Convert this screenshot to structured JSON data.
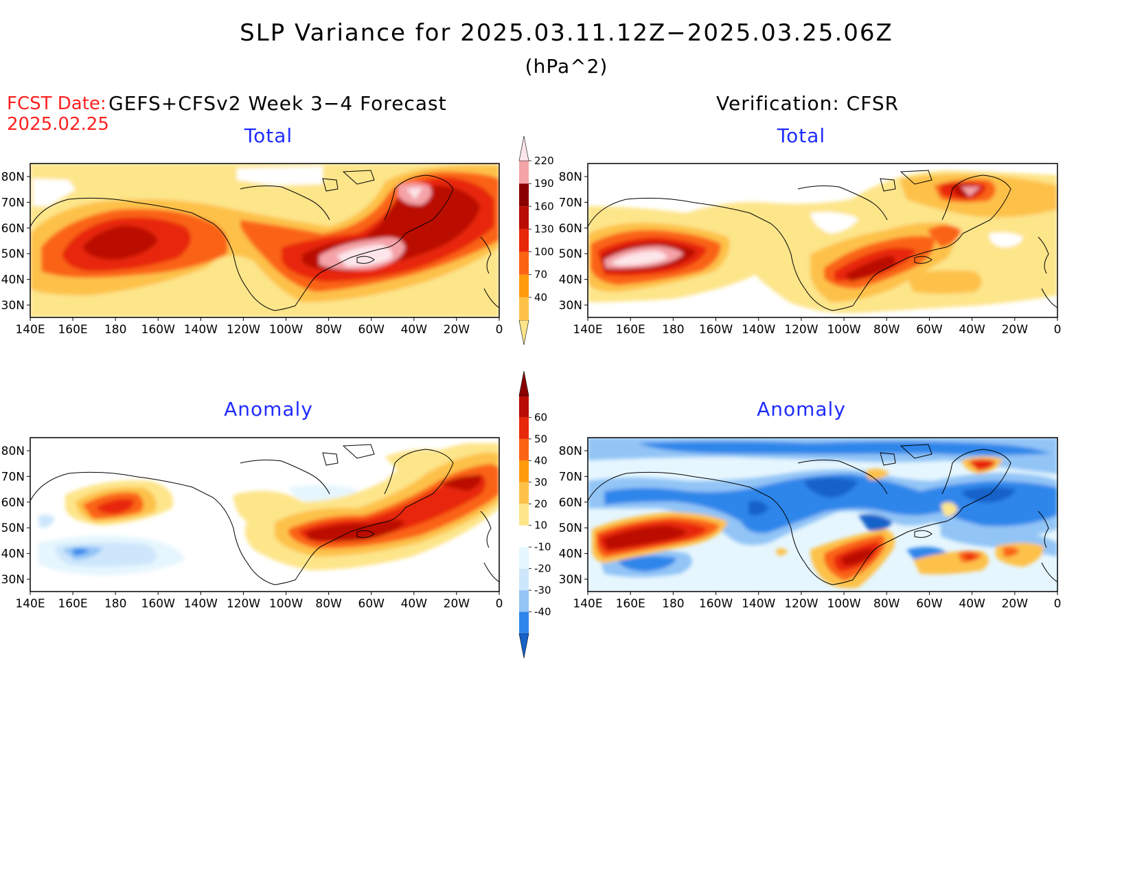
{
  "title": "SLP Variance for 2025.03.11.12Z−2025.03.25.06Z",
  "units": "(hPa^2)",
  "fcst_date_label": "FCST Date:",
  "fcst_date_value": "2025.02.25",
  "left_header": "GEFS+CFSv2 Week 3−4 Forecast",
  "right_header": "Verification: CFSR",
  "panels": [
    {
      "title": "Total"
    },
    {
      "title": "Total"
    },
    {
      "title": "Anomaly"
    },
    {
      "title": "Anomaly"
    }
  ],
  "lat_labels": [
    "80N",
    "70N",
    "60N",
    "50N",
    "40N",
    "30N"
  ],
  "lon_labels": [
    "140E",
    "160E",
    "180",
    "160W",
    "140W",
    "120W",
    "100W",
    "80W",
    "60W",
    "40W",
    "20W",
    "0"
  ],
  "colorbar_total": {
    "levels": [
      "40",
      "70",
      "100",
      "130",
      "160",
      "190",
      "220"
    ],
    "colors": [
      "#fde58a",
      "#fdc14a",
      "#fd9b0c",
      "#fa6414",
      "#e8280a",
      "#ba0d04",
      "#8a0000",
      "#f4a3a8",
      "#fde6ea"
    ]
  },
  "colorbar_anomaly": {
    "levels": [
      "-40",
      "-30",
      "-20",
      "-10",
      "10",
      "20",
      "30",
      "40",
      "50",
      "60"
    ],
    "colors": [
      "#1762c9",
      "#2f86ea",
      "#92c4f6",
      "#cde6fb",
      "#e6f6fe",
      "#ffffff",
      "#fde58a",
      "#fdc14a",
      "#fd9b0c",
      "#fa6414",
      "#e8280a",
      "#ba0d04",
      "#8a0000"
    ]
  }
}
